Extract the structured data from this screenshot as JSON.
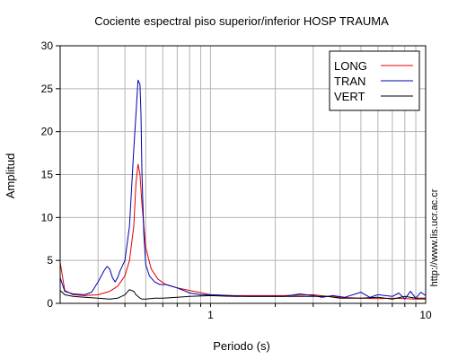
{
  "chart_data": {
    "type": "line",
    "title": "Cociente espectral piso superior/inferior  HOSP TRAUMA",
    "xlabel": "Periodo (s)",
    "ylabel": "Amplitud",
    "xscale": "log",
    "xlim": [
      0.2,
      10
    ],
    "ylim": [
      0,
      30
    ],
    "x_ticks": [
      {
        "value": 1,
        "label": "1"
      },
      {
        "value": 10,
        "label": "10"
      }
    ],
    "y_ticks": [
      {
        "value": 0,
        "label": "0"
      },
      {
        "value": 5,
        "label": "5"
      },
      {
        "value": 10,
        "label": "10"
      },
      {
        "value": 15,
        "label": "15"
      },
      {
        "value": 20,
        "label": "20"
      },
      {
        "value": 25,
        "label": "25"
      },
      {
        "value": 30,
        "label": "30"
      }
    ],
    "grid": true,
    "legend_position": "top-right",
    "series": [
      {
        "name": "LONG",
        "color": "#e00000",
        "x": [
          0.2,
          0.21,
          0.23,
          0.26,
          0.3,
          0.34,
          0.37,
          0.4,
          0.42,
          0.44,
          0.45,
          0.46,
          0.47,
          0.48,
          0.5,
          0.53,
          0.57,
          0.62,
          0.7,
          0.8,
          1.0,
          1.3,
          1.7,
          2.2,
          3.0,
          3.5,
          4.0,
          5.0,
          6.0,
          7.0,
          8.0,
          9.0,
          10.0
        ],
        "y": [
          4.8,
          1.5,
          1.0,
          0.9,
          1.0,
          1.4,
          2.0,
          3.2,
          5.0,
          9.0,
          14.0,
          16.2,
          15.0,
          11.5,
          6.5,
          4.0,
          2.8,
          2.2,
          1.8,
          1.5,
          1.0,
          0.9,
          0.9,
          0.9,
          1.0,
          0.8,
          0.7,
          0.6,
          0.55,
          0.6,
          0.55,
          0.5,
          0.5
        ]
      },
      {
        "name": "TRAN",
        "color": "#0000b4",
        "x": [
          0.2,
          0.21,
          0.23,
          0.26,
          0.28,
          0.3,
          0.32,
          0.33,
          0.34,
          0.35,
          0.36,
          0.37,
          0.38,
          0.4,
          0.42,
          0.43,
          0.44,
          0.45,
          0.46,
          0.47,
          0.475,
          0.48,
          0.49,
          0.5,
          0.52,
          0.55,
          0.58,
          0.62,
          0.66,
          0.7,
          0.75,
          0.8,
          0.9,
          1.0,
          1.2,
          1.5,
          1.8,
          2.2,
          2.6,
          3.0,
          3.3,
          3.7,
          4.2,
          5.0,
          5.5,
          6.0,
          7.0,
          7.5,
          8.0,
          8.5,
          9.0,
          9.5,
          10.0
        ],
        "y": [
          3.0,
          1.4,
          1.1,
          1.0,
          1.3,
          2.5,
          3.8,
          4.3,
          4.0,
          3.0,
          2.5,
          3.0,
          3.8,
          5.0,
          9.0,
          13.5,
          18.0,
          22.0,
          26.0,
          25.5,
          22.0,
          15.0,
          8.0,
          4.5,
          3.2,
          2.5,
          2.2,
          2.2,
          2.0,
          1.8,
          1.5,
          1.2,
          1.0,
          1.0,
          0.9,
          0.8,
          0.8,
          0.8,
          1.1,
          0.9,
          0.7,
          0.9,
          0.7,
          1.3,
          0.7,
          1.0,
          0.8,
          1.2,
          0.5,
          1.4,
          0.6,
          1.3,
          0.9
        ]
      },
      {
        "name": "VERT",
        "color": "#000000",
        "x": [
          0.2,
          0.21,
          0.23,
          0.26,
          0.3,
          0.34,
          0.37,
          0.4,
          0.42,
          0.44,
          0.45,
          0.46,
          0.47,
          0.48,
          0.5,
          0.55,
          0.6,
          0.7,
          0.8,
          1.0,
          1.3,
          1.7,
          2.2,
          3.0,
          3.5,
          4.0,
          5.0,
          6.0,
          7.0,
          8.0,
          9.0,
          10.0
        ],
        "y": [
          1.5,
          1.0,
          0.8,
          0.7,
          0.6,
          0.5,
          0.6,
          1.0,
          1.6,
          1.4,
          1.0,
          0.8,
          0.6,
          0.5,
          0.5,
          0.6,
          0.6,
          0.7,
          0.8,
          0.9,
          0.8,
          0.8,
          0.8,
          0.8,
          0.8,
          0.6,
          0.6,
          0.7,
          0.5,
          0.8,
          0.6,
          0.6
        ]
      }
    ],
    "side_note": "http://www.lis.ucr.ac.cr"
  }
}
